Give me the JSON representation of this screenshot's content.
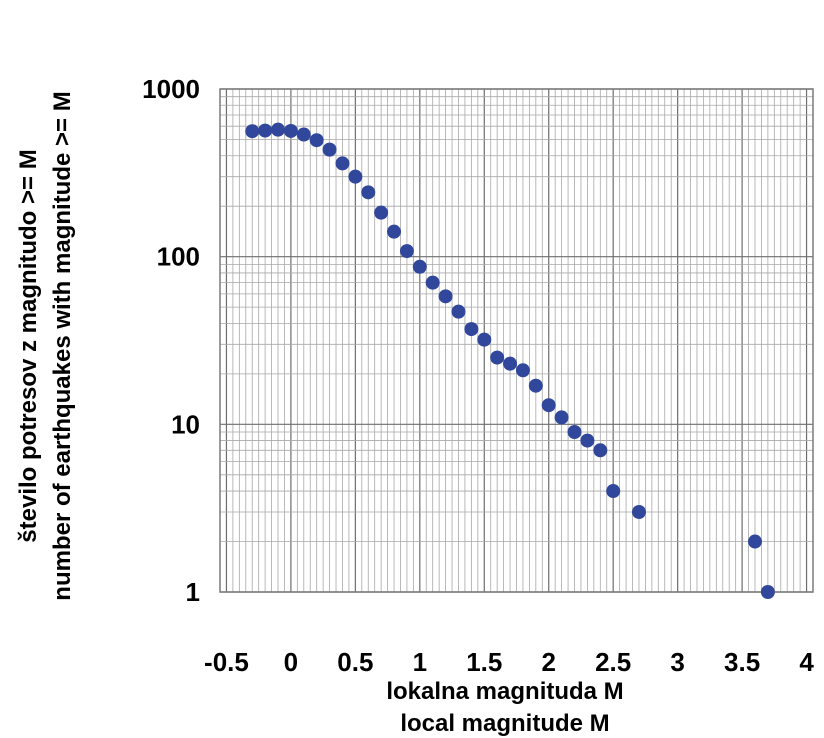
{
  "chart_data": {
    "type": "scatter",
    "xlabel": [
      "lokalna magnituda M",
      "local magnitude M"
    ],
    "ylabel": [
      "število potresov z magnitudo >= M",
      "number of earthquakes with magnitude >= M"
    ],
    "xlim": [
      -0.55,
      4.05
    ],
    "ylim": [
      1,
      1000
    ],
    "yscale": "log",
    "grid": true,
    "x_ticks": [
      -0.5,
      0,
      0.5,
      1,
      1.5,
      2,
      2.5,
      3,
      3.5,
      4
    ],
    "x_tick_labels": [
      "-0.5",
      "0",
      "0.5",
      "1",
      "1.5",
      "2",
      "2.5",
      "3",
      "3.5",
      "4"
    ],
    "y_ticks": [
      1,
      10,
      100,
      1000
    ],
    "y_tick_labels": [
      "1",
      "10",
      "100",
      "1000"
    ],
    "marker_color": "#31479b",
    "points": [
      {
        "x": -0.3,
        "y": 560
      },
      {
        "x": -0.2,
        "y": 565
      },
      {
        "x": -0.1,
        "y": 572
      },
      {
        "x": 0.0,
        "y": 562
      },
      {
        "x": 0.1,
        "y": 535
      },
      {
        "x": 0.2,
        "y": 495
      },
      {
        "x": 0.3,
        "y": 435
      },
      {
        "x": 0.4,
        "y": 360
      },
      {
        "x": 0.5,
        "y": 300
      },
      {
        "x": 0.6,
        "y": 242
      },
      {
        "x": 0.7,
        "y": 183
      },
      {
        "x": 0.8,
        "y": 141
      },
      {
        "x": 0.9,
        "y": 108
      },
      {
        "x": 1.0,
        "y": 87
      },
      {
        "x": 1.1,
        "y": 70
      },
      {
        "x": 1.2,
        "y": 58
      },
      {
        "x": 1.3,
        "y": 47
      },
      {
        "x": 1.4,
        "y": 37
      },
      {
        "x": 1.5,
        "y": 32
      },
      {
        "x": 1.6,
        "y": 25
      },
      {
        "x": 1.7,
        "y": 23
      },
      {
        "x": 1.8,
        "y": 21
      },
      {
        "x": 1.9,
        "y": 17
      },
      {
        "x": 2.0,
        "y": 13
      },
      {
        "x": 2.1,
        "y": 11
      },
      {
        "x": 2.2,
        "y": 9
      },
      {
        "x": 2.3,
        "y": 8
      },
      {
        "x": 2.4,
        "y": 7
      },
      {
        "x": 2.5,
        "y": 4
      },
      {
        "x": 2.7,
        "y": 3
      },
      {
        "x": 3.6,
        "y": 2
      },
      {
        "x": 3.7,
        "y": 1
      }
    ]
  }
}
